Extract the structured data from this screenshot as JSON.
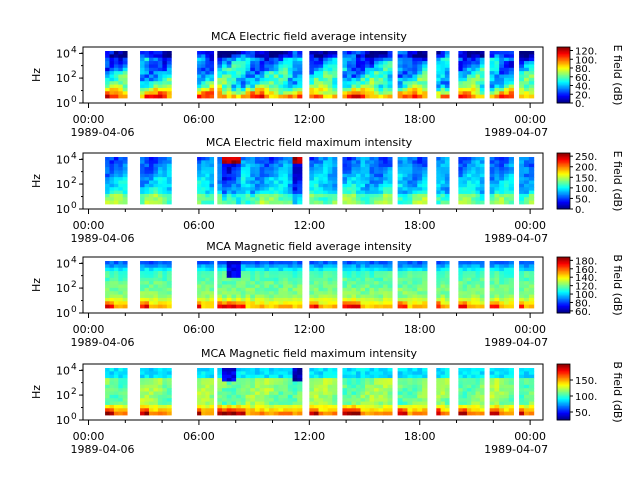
{
  "chart_data": [
    {
      "type": "heatmap",
      "title": "MCA  Electric field average intensity",
      "ylabel": "Hz",
      "yscale": "log",
      "ylim": [
        1,
        31623
      ],
      "y_ticks": [
        "10",
        "10",
        "10"
      ],
      "y_tick_exponents": [
        "0",
        "2",
        "4"
      ],
      "x_ticks": [
        "00:00",
        "06:00",
        "12:00",
        "18:00",
        "00:00"
      ],
      "x_tick_values_hours": [
        0,
        6,
        12,
        18,
        24
      ],
      "start_date": "1989-04-06",
      "end_date": "1989-04-07",
      "colorbar_label": "E field (dB)",
      "colorbar_ticks": [
        "0.",
        "20.",
        "40.",
        "60.",
        "80.",
        "100.",
        "120."
      ],
      "colorbar_values": [
        0,
        20,
        40,
        60,
        80,
        100,
        120
      ],
      "colorbar_range": [
        0,
        128
      ],
      "data_segments_hours": [
        [
          0.3,
          0.8
        ],
        [
          1.0,
          1.6
        ],
        [
          2.3,
          2.9
        ],
        [
          3.5,
          3.8
        ],
        [
          3.9,
          4.8
        ]
      ],
      "pattern": "avg_e"
    },
    {
      "type": "heatmap",
      "title": "MCA  Electric field maximum intensity",
      "ylabel": "Hz",
      "yscale": "log",
      "ylim": [
        1,
        31623
      ],
      "y_ticks": [
        "10",
        "10",
        "10"
      ],
      "y_tick_exponents": [
        "0",
        "2",
        "4"
      ],
      "x_ticks": [
        "00:00",
        "06:00",
        "12:00",
        "18:00",
        "00:00"
      ],
      "x_tick_values_hours": [
        0,
        6,
        12,
        18,
        24
      ],
      "start_date": "1989-04-06",
      "end_date": "1989-04-07",
      "colorbar_label": "E field (dB)",
      "colorbar_ticks": [
        "0.",
        "50.",
        "100.",
        "150.",
        "200.",
        "250."
      ],
      "colorbar_values": [
        0,
        50,
        100,
        150,
        200,
        250
      ],
      "colorbar_range": [
        0,
        265
      ],
      "data_segments_hours": [
        [
          0.3,
          0.8
        ],
        [
          1.0,
          1.6
        ],
        [
          2.3,
          2.9
        ],
        [
          3.5,
          3.8
        ],
        [
          3.9,
          4.8
        ]
      ],
      "pattern": "max_e"
    },
    {
      "type": "heatmap",
      "title": "MCA  Magnetic field average intensity",
      "ylabel": "Hz",
      "yscale": "log",
      "ylim": [
        1,
        31623
      ],
      "y_ticks": [
        "10",
        "10",
        "10"
      ],
      "y_tick_exponents": [
        "0",
        "2",
        "4"
      ],
      "x_ticks": [
        "00:00",
        "06:00",
        "12:00",
        "18:00",
        "00:00"
      ],
      "x_tick_values_hours": [
        0,
        6,
        12,
        18,
        24
      ],
      "start_date": "1989-04-06",
      "end_date": "1989-04-07",
      "colorbar_label": "B field (dB)",
      "colorbar_ticks": [
        "60.",
        "80.",
        "100.",
        "120.",
        "140.",
        "160.",
        "180."
      ],
      "colorbar_values": [
        60,
        80,
        100,
        120,
        140,
        160,
        180
      ],
      "colorbar_range": [
        55,
        188
      ],
      "data_segments_hours": [
        [
          0.3,
          0.8
        ],
        [
          1.0,
          1.6
        ],
        [
          2.3,
          2.9
        ],
        [
          3.5,
          3.8
        ],
        [
          3.9,
          4.8
        ]
      ],
      "pattern": "avg_b"
    },
    {
      "type": "heatmap",
      "title": "MCA  Magnetic field maximum intensity",
      "ylabel": "Hz",
      "yscale": "log",
      "ylim": [
        1,
        31623
      ],
      "y_ticks": [
        "10",
        "10",
        "10"
      ],
      "y_tick_exponents": [
        "0",
        "2",
        "4"
      ],
      "x_ticks": [
        "00:00",
        "06:00",
        "12:00",
        "18:00",
        "00:00"
      ],
      "x_tick_values_hours": [
        0,
        6,
        12,
        18,
        24
      ],
      "start_date": "1989-04-06",
      "end_date": "1989-04-07",
      "colorbar_label": "B field (dB)",
      "colorbar_ticks": [
        "50.",
        "100.",
        "150."
      ],
      "colorbar_values": [
        50,
        100,
        150
      ],
      "colorbar_range": [
        25,
        200
      ],
      "data_segments_hours": [
        [
          0.3,
          0.8
        ],
        [
          1.0,
          1.6
        ],
        [
          2.3,
          2.9
        ],
        [
          3.5,
          3.8
        ],
        [
          3.9,
          4.8
        ]
      ],
      "pattern": "max_b"
    }
  ]
}
